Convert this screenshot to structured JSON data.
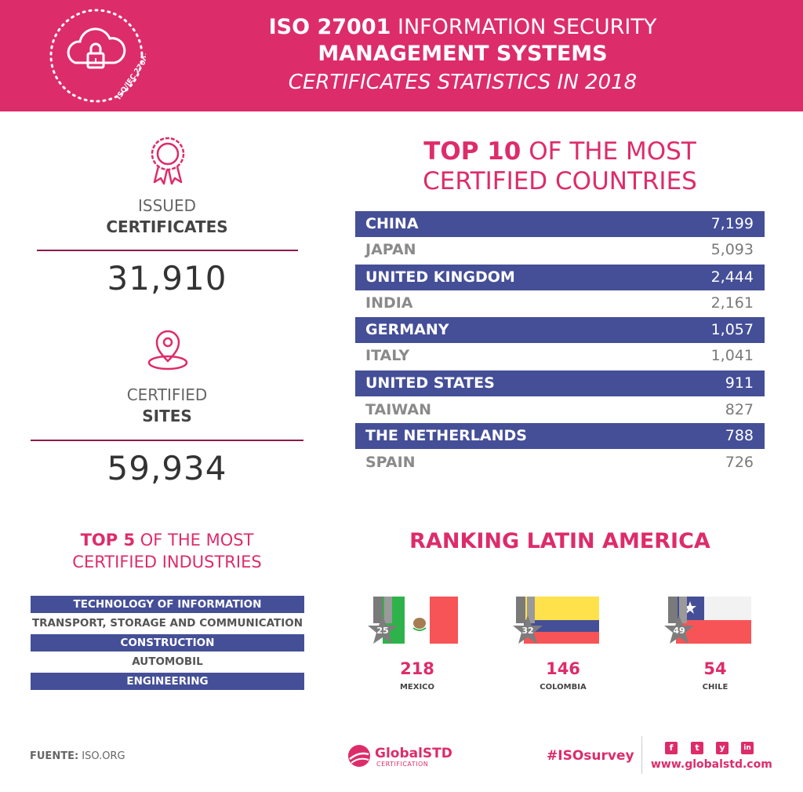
{
  "header": {
    "line1_bold": "ISO 27001",
    "line1_rest": " INFORMATION SECURITY",
    "line2": "MANAGEMENT SYSTEMS",
    "line3": "CERTIFICATES STATISTICS IN 2018",
    "seal_text": "ISO/IEC 27001"
  },
  "stats": {
    "issued_label": "ISSUED",
    "issued_bold": "CERTIFICATES",
    "issued_value": "31,910",
    "sites_label": "CERTIFIED",
    "sites_bold": "SITES",
    "sites_value": "59,934"
  },
  "top_countries": {
    "title_bold": "TOP 10",
    "title_rest": " OF THE MOST",
    "title_line2": "CERTIFIED COUNTRIES",
    "rows": [
      {
        "name": "CHINA",
        "value": "7,199"
      },
      {
        "name": "JAPAN",
        "value": "5,093"
      },
      {
        "name": "UNITED KINGDOM",
        "value": "2,444"
      },
      {
        "name": "INDIA",
        "value": "2,161"
      },
      {
        "name": "GERMANY",
        "value": "1,057"
      },
      {
        "name": "ITALY",
        "value": "1,041"
      },
      {
        "name": "UNITED STATES",
        "value": "911"
      },
      {
        "name": "TAIWAN",
        "value": "827"
      },
      {
        "name": "THE NETHERLANDS",
        "value": "788"
      },
      {
        "name": "SPAIN",
        "value": "726"
      }
    ]
  },
  "top_industries": {
    "title_bold": "TOP 5",
    "title_rest": " OF THE MOST",
    "title_line2": "CERTIFIED INDUSTRIES",
    "rows": [
      "TECHNOLOGY OF INFORMATION",
      "TRANSPORT, STORAGE AND COMMUNICATION",
      "CONSTRUCTION",
      "AUTOMOBIL",
      "ENGINEERING"
    ]
  },
  "latin_america": {
    "title": "RANKING LATIN AMERICA",
    "items": [
      {
        "rank": "25",
        "count": "218",
        "name": "MEXICO"
      },
      {
        "rank": "32",
        "count": "146",
        "name": "COLOMBIA"
      },
      {
        "rank": "49",
        "count": "54",
        "name": "CHILE"
      }
    ]
  },
  "footer": {
    "source_bold": "FUENTE:",
    "source_rest": " ISO.ORG",
    "logo": "GlobalSTD",
    "logo_sub": "CERTIFICATION",
    "hashtag": "#ISOsurvey",
    "website": "www.globalstd.com",
    "social": [
      "f",
      "t",
      "y",
      "in"
    ]
  },
  "colors": {
    "brand_pink": "#dd2c6a",
    "navy": "#454f97",
    "rule": "#8c1a4a"
  }
}
